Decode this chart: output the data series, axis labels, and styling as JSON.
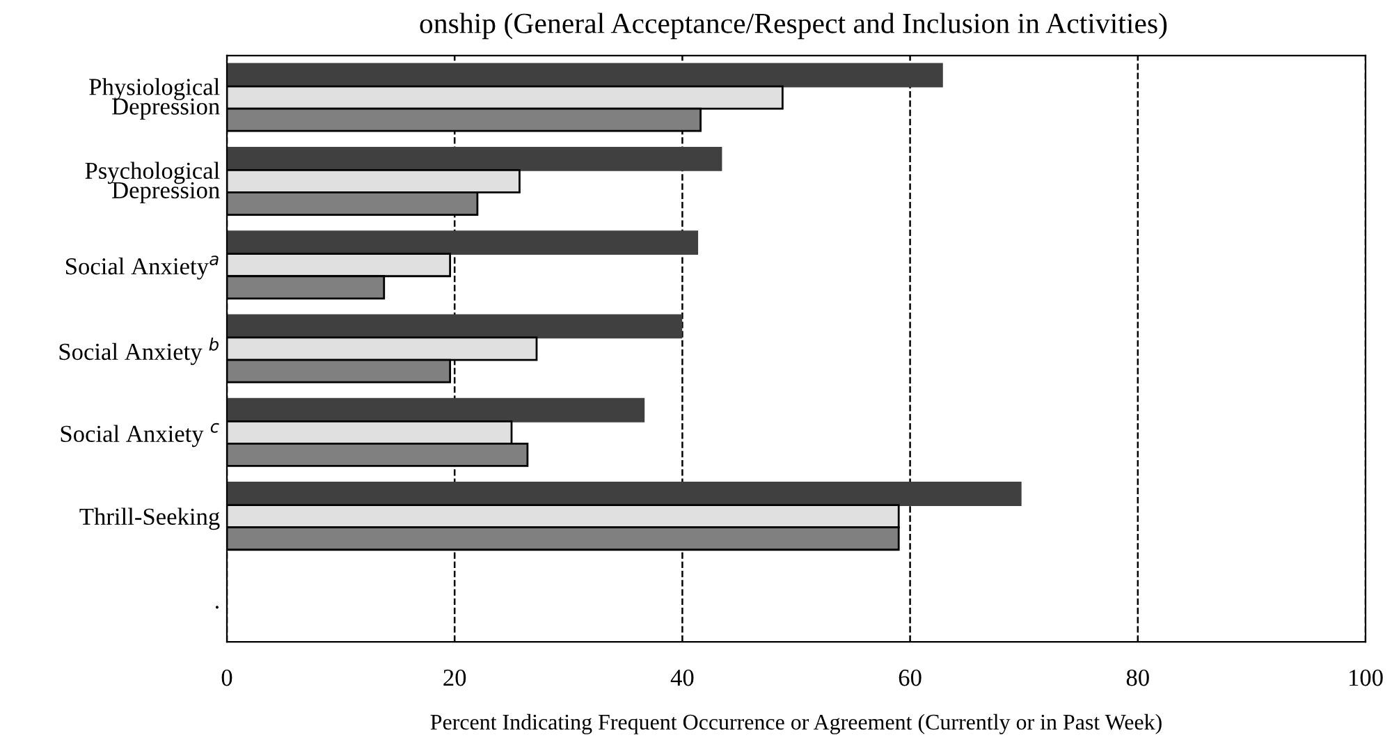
{
  "chart_data": {
    "type": "bar",
    "orientation": "horizontal",
    "title": "onship (General Acceptance/Respect and Inclusion in Activities)",
    "xlabel": "Percent Indicating Frequent Occurrence or Agreement (Currently or in Past Week)",
    "categories": [
      "Physiological\nDepression",
      "Psychological\nDepression",
      "Social Anxiety$^{a}$",
      "Social Anxiety $^{b}$",
      "Social Anxiety $^{c}$",
      "Thrill-Seeking",
      "."
    ],
    "series": [
      {
        "color": "#404040",
        "values": [
          62.8,
          43.4,
          41.3,
          39.9,
          36.6,
          69.7,
          null
        ]
      },
      {
        "color": "#e0e0e0",
        "values": [
          48.8,
          25.7,
          19.6,
          27.2,
          25.0,
          59.0,
          null
        ]
      },
      {
        "color": "#808080",
        "values": [
          41.6,
          22.0,
          13.8,
          19.6,
          26.4,
          59.0,
          null
        ]
      }
    ],
    "xlim": [
      0,
      100
    ],
    "xticks": [
      0,
      20,
      40,
      60,
      80,
      100
    ],
    "grid": "x",
    "line_style": "dashed"
  }
}
